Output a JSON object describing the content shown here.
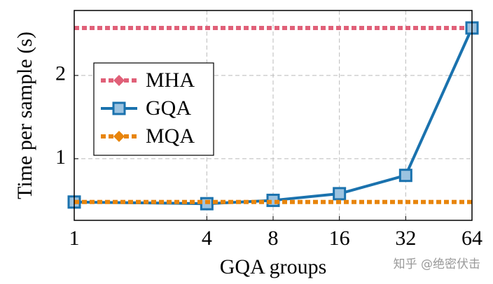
{
  "chart_data": {
    "type": "line",
    "x_label": "GQA groups",
    "y_label": "Time per sample (s)",
    "x": [
      1,
      4,
      8,
      16,
      32,
      64
    ],
    "series": [
      {
        "name": "MHA",
        "color": "#e06078",
        "dash": true,
        "marker": "diamond",
        "values": [
          2.57,
          2.57,
          2.57,
          2.57,
          2.57,
          2.57
        ]
      },
      {
        "name": "GQA",
        "color": "#1a72ae",
        "dash": false,
        "marker": "square",
        "values": [
          0.48,
          0.46,
          0.5,
          0.58,
          0.8,
          2.57
        ]
      },
      {
        "name": "MQA",
        "color": "#e8850c",
        "dash": true,
        "marker": "diamond",
        "values": [
          0.48,
          0.48,
          0.48,
          0.48,
          0.48,
          0.48
        ]
      }
    ],
    "xlim": [
      1,
      64
    ],
    "xticks": [
      1,
      4,
      8,
      16,
      32,
      64
    ],
    "xscale": "log",
    "ylim": [
      0.26,
      2.78
    ],
    "yticks": [
      1,
      2
    ],
    "grid": true,
    "legend": "upper left",
    "watermark": "知乎 @绝密伏击"
  }
}
